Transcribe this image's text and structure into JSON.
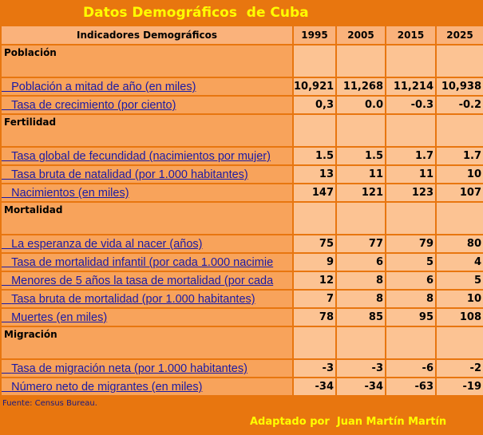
{
  "title": "Datos Demográficos  de Cuba",
  "table": {
    "columns": [
      "Indicadores Demográficos",
      "1995",
      "2005",
      "2015",
      "2025"
    ],
    "rows": [
      [
        "Población"
      ],
      [
        "Población a mitad de año (en miles)",
        "10,921",
        "11,268",
        "11,214",
        "10,938"
      ],
      [
        "Tasa de crecimiento (por ciento)",
        "0,3",
        "0.0",
        "-0.3",
        "-0.2"
      ],
      [
        "Fertilidad"
      ],
      [
        "Tasa global de fecundidad (nacimientos por mujer)",
        "1.5",
        "1.5",
        "1.7",
        "1.7"
      ],
      [
        "Tasa bruta de natalidad (por 1.000 habitantes)",
        "13",
        "11",
        "11",
        "10"
      ],
      [
        "Nacimientos (en miles)",
        "147",
        "121",
        "123",
        "107"
      ],
      [
        "Mortalidad"
      ],
      [
        "La esperanza de vida al nacer (años)",
        "75",
        "77",
        "79",
        "80"
      ],
      [
        "Tasa de mortalidad infantil (por cada 1.000 nacimie",
        "9",
        "6",
        "5",
        "4"
      ],
      [
        "Menores de 5 años la tasa de mortalidad (por cada",
        "12",
        "8",
        "6",
        "5"
      ],
      [
        "Tasa bruta de mortalidad (por 1.000 habitantes)",
        "7",
        "8",
        "8",
        "10"
      ],
      [
        "Muertes (en miles)",
        "78",
        "85",
        "95",
        "108"
      ],
      [
        "Migración"
      ],
      [
        "Tasa de migración neta (por 1.000 habitantes)",
        "-3",
        "-3",
        "-6",
        "-2"
      ],
      [
        "Número neto de migrantes (en miles)",
        "-34",
        "-34",
        "-63",
        "-19"
      ]
    ]
  },
  "footer": {
    "source": "Fuente: Census Bureau.",
    "credit": "Adaptado por  Juan Martín Martín"
  }
}
